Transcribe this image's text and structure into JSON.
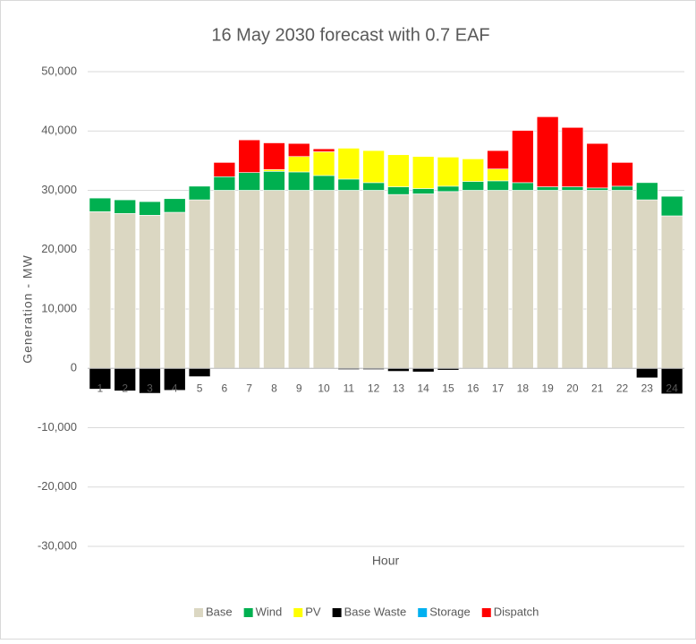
{
  "chart_data": {
    "type": "bar",
    "stacked": true,
    "title": "16 May 2030 forecast with 0.7 EAF",
    "x_label": "Hour",
    "y_label": "Generation - MW",
    "categories": [
      "1",
      "2",
      "3",
      "4",
      "5",
      "6",
      "7",
      "8",
      "9",
      "10",
      "11",
      "12",
      "13",
      "14",
      "15",
      "16",
      "17",
      "18",
      "19",
      "20",
      "21",
      "22",
      "23",
      "24"
    ],
    "series": [
      {
        "name": "Base",
        "color": "#dbd7c2",
        "values": [
          26400,
          26100,
          25800,
          26300,
          28400,
          30000,
          30000,
          30000,
          30000,
          30000,
          30000,
          30000,
          29300,
          29400,
          29800,
          30000,
          30000,
          30000,
          30000,
          30000,
          30000,
          30000,
          28400,
          25700
        ]
      },
      {
        "name": "Wind",
        "color": "#00b050",
        "values": [
          2300,
          2300,
          2300,
          2300,
          2300,
          2300,
          3000,
          3200,
          3100,
          2500,
          1900,
          1300,
          1300,
          900,
          900,
          1500,
          1600,
          1300,
          600,
          600,
          400,
          700,
          2900,
          3300
        ]
      },
      {
        "name": "PV",
        "color": "#ffff00",
        "values": [
          0,
          0,
          0,
          0,
          0,
          0,
          0,
          300,
          2600,
          4000,
          5200,
          5400,
          5400,
          5400,
          4900,
          3800,
          2000,
          0,
          0,
          0,
          0,
          0,
          0,
          0
        ]
      },
      {
        "name": "Base Waste",
        "color": "#000000",
        "values": [
          -3500,
          -3800,
          -4200,
          -3700,
          -1400,
          0,
          0,
          0,
          0,
          0,
          -200,
          -200,
          -500,
          -600,
          -300,
          0,
          0,
          0,
          0,
          0,
          0,
          0,
          -1600,
          -4300
        ]
      },
      {
        "name": "Storage",
        "color": "#00b0f0",
        "values": [
          0,
          0,
          0,
          0,
          0,
          0,
          0,
          0,
          0,
          0,
          0,
          0,
          0,
          0,
          0,
          0,
          0,
          0,
          0,
          0,
          0,
          0,
          0,
          0
        ]
      },
      {
        "name": "Dispatch",
        "color": "#ff0000",
        "values": [
          0,
          0,
          0,
          0,
          0,
          2400,
          5500,
          4500,
          2200,
          500,
          0,
          0,
          0,
          0,
          0,
          0,
          3100,
          8800,
          11800,
          10000,
          7500,
          4000,
          0,
          0
        ]
      }
    ],
    "ylim": [
      -30000,
      50000
    ],
    "yticks": [
      {
        "value": -30000,
        "label": "-30,000"
      },
      {
        "value": -20000,
        "label": "-20,000"
      },
      {
        "value": -10000,
        "label": "-10,000"
      },
      0,
      {
        "value": 10000,
        "label": "10,000"
      },
      {
        "value": 20000,
        "label": "20,000"
      },
      {
        "value": 30000,
        "label": "30,000"
      },
      {
        "value": 40000,
        "label": "40,000"
      },
      {
        "value": 50000,
        "label": "50,000"
      }
    ],
    "grid": true,
    "legend": "bottom"
  }
}
